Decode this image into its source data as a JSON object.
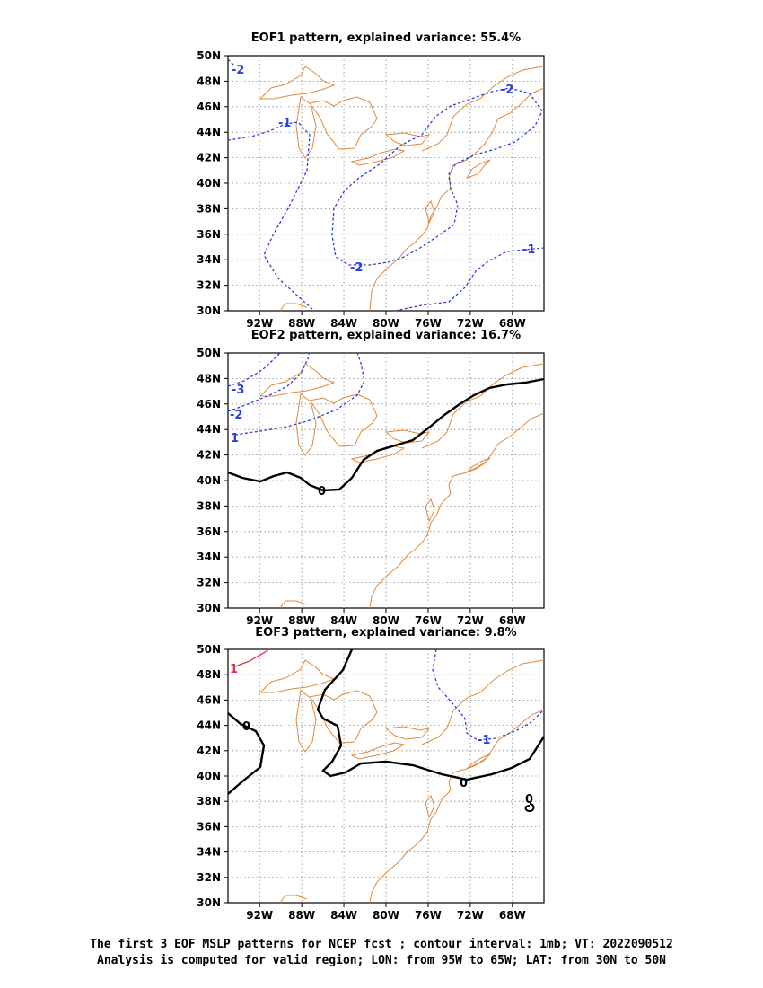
{
  "colors": {
    "coast": "#e08a3c",
    "negative_contour": "#2b3fe0",
    "zero_contour": "#000000",
    "positive_contour": "#e0304a",
    "grid": "#888888"
  },
  "axes": {
    "lon_ticks": [
      "92W",
      "88W",
      "84W",
      "80W",
      "76W",
      "72W",
      "68W"
    ],
    "lat_ticks": [
      "30N",
      "32N",
      "34N",
      "36N",
      "38N",
      "40N",
      "42N",
      "44N",
      "46N",
      "48N",
      "50N"
    ]
  },
  "panels": [
    {
      "title": "EOF1 pattern, explained variance: 55.4%",
      "contour_labels": [
        "-2",
        "-1",
        "-2",
        "-2",
        "-1"
      ]
    },
    {
      "title": "EOF2 pattern, explained variance: 16.7%",
      "contour_labels": [
        "-3",
        "-2",
        "1",
        "0"
      ]
    },
    {
      "title": "EOF3 pattern, explained variance: 9.8%",
      "contour_labels": [
        "1",
        "0",
        "0",
        "-1",
        "0"
      ]
    }
  ],
  "caption": {
    "line1": "The first 3 EOF MSLP patterns for NCEP fcst ; contour interval: 1mb; VT: 2022090512",
    "line2": "Analysis is computed for valid region; LON: from 95W to 65W; LAT: from 30N to 50N"
  }
}
